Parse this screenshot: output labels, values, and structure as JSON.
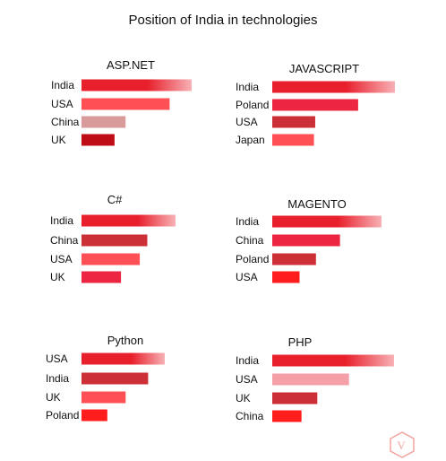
{
  "title": "Position of India in technologies",
  "logo_text": "V",
  "colors": {
    "primary_red": "#e8202c",
    "light_red": "#ff5055",
    "pink": "#d99a9a",
    "dark_red": "#bf0d17",
    "crimson": "#cc2f36",
    "rose": "#ec2543",
    "bright_red": "#ff1d1d",
    "pale_pink": "#f5a0a9",
    "logo_color": "#f2a5a0"
  },
  "chart_data": [
    {
      "type": "bar",
      "title": "ASP.NET",
      "categories": [
        "India",
        "USA",
        "China",
        "UK"
      ],
      "values": [
        100,
        80,
        40,
        30
      ],
      "colors": [
        "#e8202c",
        "#ff5055",
        "#d99a9a",
        "#bf0d17"
      ],
      "fade_first": true
    },
    {
      "type": "bar",
      "title": "JAVASCRIPT",
      "categories": [
        "India",
        "Poland",
        "USA",
        "Japan"
      ],
      "values": [
        100,
        70,
        35,
        34
      ],
      "colors": [
        "#e8202c",
        "#ec2543",
        "#cc2f36",
        "#ff5055"
      ],
      "fade_first": true
    },
    {
      "type": "bar",
      "title": "C#",
      "categories": [
        "India",
        "China",
        "USA",
        "UK"
      ],
      "values": [
        100,
        70,
        62,
        42
      ],
      "colors": [
        "#e8202c",
        "#cc2f36",
        "#ff5055",
        "#ec2543"
      ],
      "fade_first": true
    },
    {
      "type": "bar",
      "title": "MAGENTO",
      "categories": [
        "India",
        "China",
        "Poland",
        "USA"
      ],
      "values": [
        100,
        62,
        40,
        25
      ],
      "colors": [
        "#e8202c",
        "#ec2543",
        "#cc2f36",
        "#ff1d1d"
      ],
      "fade_first": true
    },
    {
      "type": "bar",
      "title": "Python",
      "categories": [
        "USA",
        "India",
        "UK",
        "Poland"
      ],
      "values": [
        100,
        80,
        53,
        31
      ],
      "colors": [
        "#e8202c",
        "#cc2f36",
        "#ff5055",
        "#ff1d1d"
      ],
      "fade_first": true
    },
    {
      "type": "bar",
      "title": "PHP",
      "categories": [
        "India",
        "USA",
        "UK",
        "China"
      ],
      "values": [
        100,
        63,
        37,
        24
      ],
      "colors": [
        "#e8202c",
        "#f5a0a9",
        "#cc2f36",
        "#ff1d1d"
      ],
      "fade_first": true
    }
  ]
}
